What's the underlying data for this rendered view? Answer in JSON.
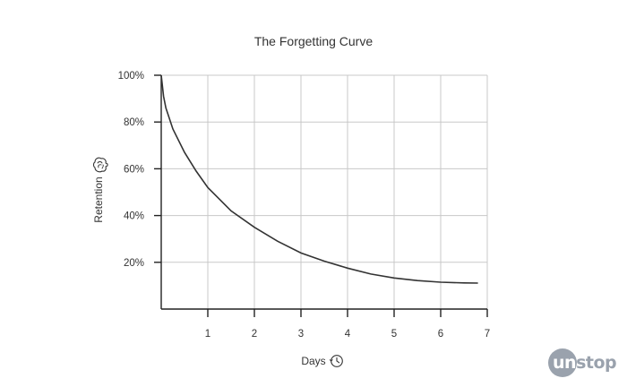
{
  "chart_data": {
    "type": "line",
    "title": "The Forgetting Curve",
    "xlabel": "Days",
    "ylabel": "Retention",
    "xlim": [
      0,
      7
    ],
    "ylim": [
      0,
      100
    ],
    "x_ticks": [
      1,
      2,
      3,
      4,
      5,
      6,
      7
    ],
    "y_ticks": [
      20,
      40,
      60,
      80,
      100
    ],
    "y_tick_labels": [
      "20%",
      "40%",
      "60%",
      "80%",
      "100%"
    ],
    "grid": true,
    "x": [
      0,
      0.05,
      0.1,
      0.25,
      0.5,
      0.75,
      1,
      1.5,
      2,
      2.5,
      3,
      3.5,
      4,
      4.5,
      5,
      5.5,
      6,
      6.5,
      6.8
    ],
    "y": [
      100,
      91,
      86,
      77,
      67,
      59,
      52,
      42,
      35,
      29,
      24,
      20.5,
      17.5,
      15,
      13.3,
      12.2,
      11.5,
      11.2,
      11.1
    ],
    "series": [
      {
        "name": "",
        "color": "#333333"
      }
    ]
  },
  "icons": {
    "ylabel_icon": "brain-icon",
    "xlabel_icon": "clock-icon"
  },
  "brand": {
    "part1": "un",
    "part2": "stop",
    "color": "#9aa2ad"
  }
}
